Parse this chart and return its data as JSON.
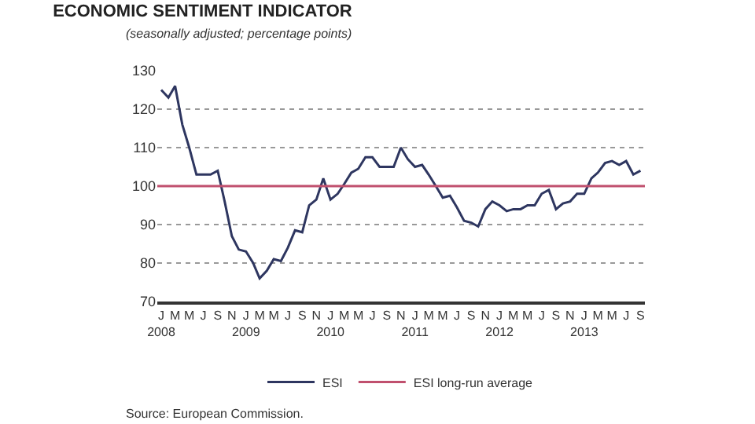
{
  "chart_data": {
    "type": "line",
    "title": "ECONOMIC SENTIMENT INDICATOR",
    "subtitle": "(seasonally adjusted; percentage points)",
    "x": [
      "2008-01",
      "2008-02",
      "2008-03",
      "2008-04",
      "2008-05",
      "2008-06",
      "2008-07",
      "2008-08",
      "2008-09",
      "2008-10",
      "2008-11",
      "2008-12",
      "2009-01",
      "2009-02",
      "2009-03",
      "2009-04",
      "2009-05",
      "2009-06",
      "2009-07",
      "2009-08",
      "2009-09",
      "2009-10",
      "2009-11",
      "2009-12",
      "2010-01",
      "2010-02",
      "2010-03",
      "2010-04",
      "2010-05",
      "2010-06",
      "2010-07",
      "2010-08",
      "2010-09",
      "2010-10",
      "2010-11",
      "2010-12",
      "2011-01",
      "2011-02",
      "2011-03",
      "2011-04",
      "2011-05",
      "2011-06",
      "2011-07",
      "2011-08",
      "2011-09",
      "2011-10",
      "2011-11",
      "2011-12",
      "2012-01",
      "2012-02",
      "2012-03",
      "2012-04",
      "2012-05",
      "2012-06",
      "2012-07",
      "2012-08",
      "2012-09",
      "2012-10",
      "2012-11",
      "2012-12",
      "2013-01",
      "2013-02",
      "2013-03",
      "2013-04",
      "2013-05",
      "2013-06",
      "2013-07",
      "2013-08",
      "2013-09"
    ],
    "series": [
      {
        "name": "ESI",
        "color": "#2e3660",
        "values": [
          125,
          123,
          126,
          116,
          110,
          103,
          103,
          103,
          104,
          96,
          87,
          83.5,
          83,
          80,
          76,
          78,
          81,
          80.5,
          84,
          88.5,
          88,
          95,
          96.5,
          102,
          96.5,
          98,
          100.5,
          103.5,
          104.5,
          107.5,
          107.5,
          105,
          105,
          105,
          110,
          107,
          105,
          105.5,
          103,
          100,
          97,
          97.5,
          94.5,
          91,
          90.5,
          89.5,
          94,
          96,
          95,
          93.5,
          94,
          94,
          95,
          95,
          98,
          99,
          94,
          95.5,
          96,
          98,
          98,
          102,
          103.5,
          106,
          106.5,
          105.5,
          106.5,
          103,
          104
        ]
      }
    ],
    "ref_lines": [
      {
        "axis": "y",
        "value": 100,
        "label": "ESI long-run average",
        "color": "#c0506e"
      }
    ],
    "ylim": [
      70,
      130
    ],
    "yticks": [
      70,
      80,
      90,
      100,
      110,
      120,
      130
    ],
    "xlim": [
      "2007-12-15",
      "2013-09-20"
    ],
    "xticks": [
      {
        "value": "2008-01",
        "label": "J\n2008"
      },
      {
        "value": "2008-03",
        "label": "M"
      },
      {
        "value": "2008-05",
        "label": "M"
      },
      {
        "value": "2008-07",
        "label": "J"
      },
      {
        "value": "2008-09",
        "label": "S"
      },
      {
        "value": "2008-11",
        "label": "N"
      },
      {
        "value": "2009-01",
        "label": "J\n2009"
      },
      {
        "value": "2009-03",
        "label": "M"
      },
      {
        "value": "2009-05",
        "label": "M"
      },
      {
        "value": "2009-07",
        "label": "J"
      },
      {
        "value": "2009-09",
        "label": "S"
      },
      {
        "value": "2009-11",
        "label": "N"
      },
      {
        "value": "2010-01",
        "label": "J\n2010"
      },
      {
        "value": "2010-03",
        "label": "M"
      },
      {
        "value": "2010-05",
        "label": "M"
      },
      {
        "value": "2010-07",
        "label": "J"
      },
      {
        "value": "2010-09",
        "label": "S"
      },
      {
        "value": "2010-11",
        "label": "N"
      },
      {
        "value": "2011-01",
        "label": "J\n2011"
      },
      {
        "value": "2011-03",
        "label": "M"
      },
      {
        "value": "2011-05",
        "label": "M"
      },
      {
        "value": "2011-07",
        "label": "J"
      },
      {
        "value": "2011-09",
        "label": "S"
      },
      {
        "value": "2011-11",
        "label": "N"
      },
      {
        "value": "2012-01",
        "label": "J\n2012"
      },
      {
        "value": "2012-03",
        "label": "M"
      },
      {
        "value": "2012-05",
        "label": "M"
      },
      {
        "value": "2012-07",
        "label": "J"
      },
      {
        "value": "2012-09",
        "label": "S"
      },
      {
        "value": "2012-11",
        "label": "N"
      },
      {
        "value": "2013-01",
        "label": "J\n2013"
      },
      {
        "value": "2013-03",
        "label": "M"
      },
      {
        "value": "2013-05",
        "label": "M"
      },
      {
        "value": "2013-07",
        "label": "J"
      },
      {
        "value": "2013-09",
        "label": "S"
      }
    ],
    "grid": "y",
    "legend": "bottom",
    "marker": "none",
    "line_style": "solid",
    "annotations": [
      "Source: European Commission."
    ]
  }
}
